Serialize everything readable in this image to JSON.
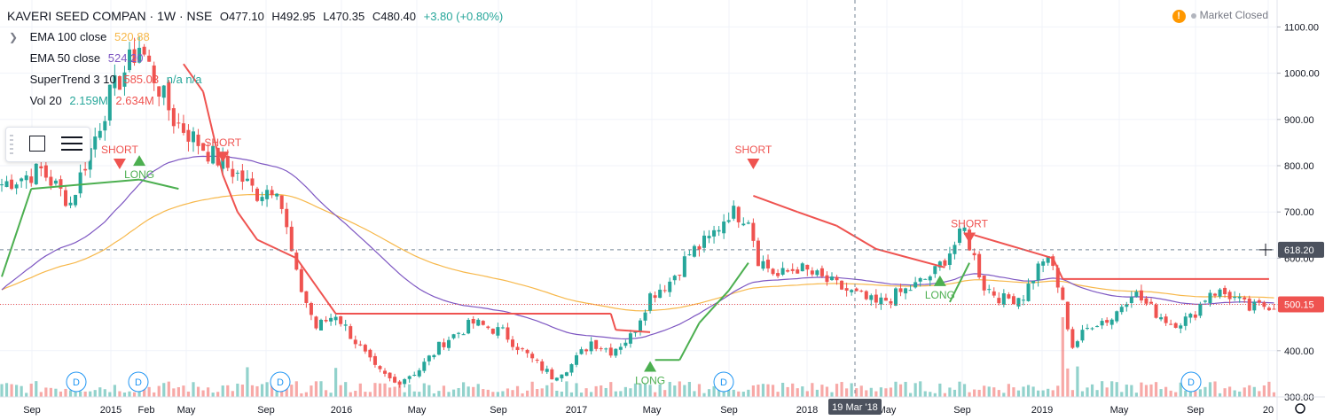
{
  "header": {
    "symbol": "KAVERI SEED COMPAN · 1W · NSE",
    "ohlc": {
      "open": "O477.10",
      "high": "H492.95",
      "low": "L470.35",
      "close": "C480.40",
      "change": "+3.80 (+0.80%)"
    },
    "change_color": "#26a69a"
  },
  "indicators": [
    {
      "label": "EMA 100 close",
      "value": "520.88",
      "color": "#f7b84b"
    },
    {
      "label": "EMA 50 close",
      "value": "524.20",
      "color": "#7e57c2"
    },
    {
      "label": "SuperTrend 3 10",
      "value": "585.03",
      "extra": "n/a  n/a",
      "color": "#ef5350",
      "extra_color": "#26a69a"
    },
    {
      "label": "Vol 20",
      "value": "2.159M",
      "extra": "2.634M",
      "color": "#26a69a",
      "extra_color": "#ef5350"
    }
  ],
  "status": {
    "text": "Market Closed",
    "warning_icon": "warning-icon"
  },
  "toolbox": {
    "tools": [
      "rectangle-icon",
      "object-tree-icon"
    ]
  },
  "chart_data": {
    "type": "candlestick",
    "interval": "1W",
    "ylim": [
      250,
      1100
    ],
    "y_ticks": [
      "1100.00",
      "1000.00",
      "900.00",
      "800.00",
      "700.00",
      "600.00",
      "500.00",
      "400.00",
      "300.00"
    ],
    "x_ticks": [
      "Sep",
      "2015",
      "Feb",
      "May",
      "Sep",
      "2016",
      "May",
      "Sep",
      "2017",
      "May",
      "Sep",
      "2018",
      "May",
      "Sep",
      "2019",
      "May",
      "Sep",
      "20"
    ],
    "crosshair": {
      "date_label": "19 Mar '18",
      "price_label": "618.20"
    },
    "last_price_label": "500.15",
    "colors": {
      "up": "#26a69a",
      "down": "#ef5350",
      "ema100": "#f7b84b",
      "ema50": "#7e57c2",
      "supertrend_up": "#4caf50",
      "supertrend_down": "#ef5350",
      "long": "#4caf50",
      "short": "#ef5350"
    },
    "signals": [
      {
        "type": "SHORT",
        "x": "Jan 2015",
        "price": 800
      },
      {
        "type": "LONG",
        "x": "Feb 2015",
        "price": 815
      },
      {
        "type": "SHORT",
        "x": "Jul 2015",
        "price": 815
      },
      {
        "type": "SHORT",
        "x": "Aug 2017",
        "price": 800
      },
      {
        "type": "LONG",
        "x": "Feb 2017",
        "price": 370
      },
      {
        "type": "LONG",
        "x": "Aug 2018",
        "price": 555
      },
      {
        "type": "SHORT",
        "x": "Sep 2018",
        "price": 640
      }
    ],
    "dividend_markers": [
      "Dec 2014",
      "Feb 2015",
      "Sep 2015",
      "Aug 2017",
      "Aug 2019"
    ],
    "dividend_label": "D",
    "keypoints": {
      "close": [
        [
          0,
          760
        ],
        [
          8,
          790
        ],
        [
          14,
          720
        ],
        [
          22,
          950
        ],
        [
          28,
          1060
        ],
        [
          35,
          900
        ],
        [
          42,
          830
        ],
        [
          48,
          780
        ],
        [
          52,
          740
        ],
        [
          56,
          760
        ],
        [
          60,
          560
        ],
        [
          64,
          450
        ],
        [
          68,
          480
        ],
        [
          72,
          420
        ],
        [
          76,
          360
        ],
        [
          80,
          330
        ],
        [
          85,
          360
        ],
        [
          90,
          420
        ],
        [
          96,
          460
        ],
        [
          102,
          440
        ],
        [
          108,
          380
        ],
        [
          112,
          345
        ],
        [
          116,
          370
        ],
        [
          120,
          420
        ],
        [
          124,
          400
        ],
        [
          128,
          430
        ],
        [
          132,
          520
        ],
        [
          136,
          550
        ],
        [
          140,
          610
        ],
        [
          144,
          640
        ],
        [
          148,
          700
        ],
        [
          152,
          690
        ],
        [
          154,
          600
        ],
        [
          158,
          560
        ],
        [
          162,
          580
        ],
        [
          166,
          560
        ],
        [
          170,
          540
        ],
        [
          174,
          520
        ],
        [
          178,
          500
        ],
        [
          182,
          520
        ],
        [
          186,
          540
        ],
        [
          190,
          570
        ],
        [
          194,
          630
        ],
        [
          196,
          660
        ],
        [
          198,
          600
        ],
        [
          200,
          540
        ],
        [
          204,
          510
        ],
        [
          208,
          520
        ],
        [
          212,
          600
        ],
        [
          214,
          580
        ],
        [
          216,
          500
        ],
        [
          218,
          410
        ],
        [
          222,
          460
        ],
        [
          226,
          470
        ],
        [
          230,
          530
        ],
        [
          234,
          490
        ],
        [
          238,
          460
        ],
        [
          242,
          470
        ],
        [
          246,
          530
        ],
        [
          250,
          520
        ],
        [
          254,
          490
        ],
        [
          258,
          500
        ]
      ]
    },
    "supertrend_keypoints": [
      [
        0,
        560,
        "up"
      ],
      [
        6,
        750,
        "up"
      ],
      [
        28,
        770,
        "up"
      ],
      [
        36,
        750,
        "up"
      ],
      [
        37,
        1020,
        "down"
      ],
      [
        41,
        960,
        "down"
      ],
      [
        45,
        780,
        "down"
      ],
      [
        48,
        700,
        "down"
      ],
      [
        52,
        640,
        "down"
      ],
      [
        60,
        600,
        "down"
      ],
      [
        68,
        480,
        "down"
      ],
      [
        124,
        480,
        "down"
      ],
      [
        125,
        445,
        "down"
      ],
      [
        132,
        440,
        "down"
      ],
      [
        133,
        380,
        "up"
      ],
      [
        138,
        380,
        "up"
      ],
      [
        142,
        460,
        "up"
      ],
      [
        148,
        530,
        "up"
      ],
      [
        152,
        590,
        "up"
      ],
      [
        153,
        735,
        "down"
      ],
      [
        162,
        700,
        "down"
      ],
      [
        170,
        670,
        "down"
      ],
      [
        178,
        620,
        "down"
      ],
      [
        192,
        580,
        "down"
      ],
      [
        193,
        505,
        "up"
      ],
      [
        197,
        590,
        "up"
      ],
      [
        198,
        650,
        "down"
      ],
      [
        214,
        600,
        "down"
      ],
      [
        216,
        555,
        "down"
      ],
      [
        258,
        555,
        "down"
      ]
    ]
  }
}
